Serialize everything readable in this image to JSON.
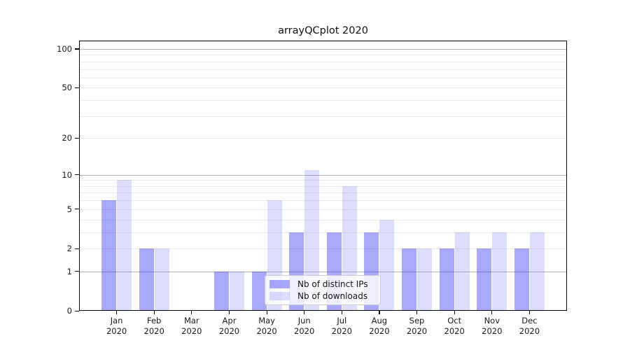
{
  "chart_data": {
    "type": "bar",
    "title": "arrayQCplot 2020",
    "categories": [
      "Jan 2020",
      "Feb 2020",
      "Mar 2020",
      "Apr 2020",
      "May 2020",
      "Jun 2020",
      "Jul 2020",
      "Aug 2020",
      "Sep 2020",
      "Oct 2020",
      "Nov 2020",
      "Dec 2020"
    ],
    "series": [
      {
        "name": "Nb of distinct IPs",
        "color": "rgba(30,30,245,0.38)",
        "values": [
          6,
          2,
          0,
          1,
          1,
          3,
          3,
          3,
          2,
          2,
          2,
          2
        ]
      },
      {
        "name": "Nb of downloads",
        "color": "rgba(30,30,248,0.15)",
        "values": [
          9,
          2,
          0,
          1,
          6,
          11,
          8,
          4,
          2,
          3,
          3,
          3
        ]
      }
    ],
    "xlabel": "",
    "ylabel": "",
    "yscale": "log1p",
    "y_ticks": [
      0,
      1,
      2,
      5,
      10,
      20,
      50,
      100
    ],
    "y_major_gridlines": [
      1,
      10,
      100
    ],
    "y_minor_gridlines": [
      2,
      3,
      4,
      5,
      6,
      7,
      8,
      9,
      20,
      30,
      40,
      50,
      60,
      70,
      80,
      90
    ],
    "ylim": [
      0,
      116
    ],
    "grid": true,
    "legend_position": "lower-center-inside",
    "legend_entries": [
      "Nb of distinct IPs",
      "Nb of downloads"
    ]
  },
  "colors": {
    "major_grid": "#b5b5b5",
    "minor_grid": "#ebebeb",
    "spine": "#000000",
    "bar_distinct_ips": "rgba(30,30,245,0.38)",
    "bar_downloads": "rgba(30,30,248,0.15)"
  }
}
